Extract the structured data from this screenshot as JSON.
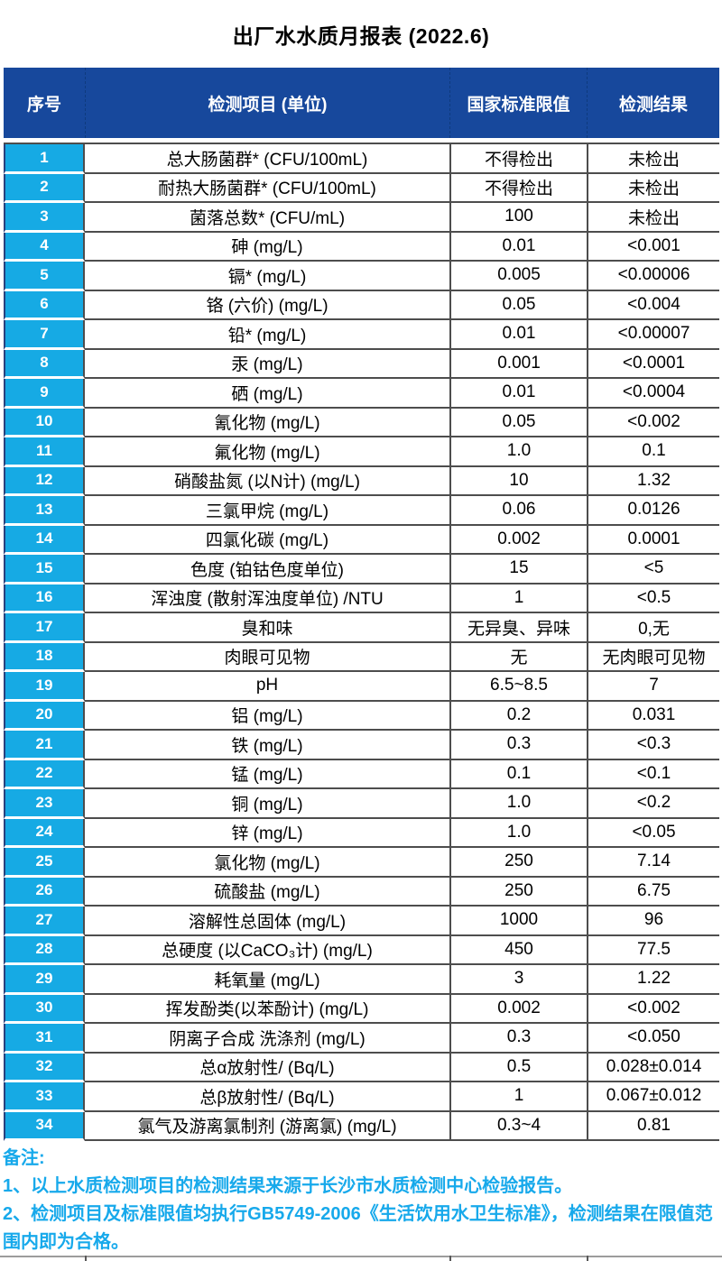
{
  "title": "出厂水水质月报表 (2022.6)",
  "table": {
    "headers": [
      "序号",
      "检测项目 (单位)",
      "国家标准限值",
      "检测结果"
    ],
    "rows": [
      {
        "no": "1",
        "item": "总大肠菌群* (CFU/100mL)",
        "limit": "不得检出",
        "result": "未检出"
      },
      {
        "no": "2",
        "item": "耐热大肠菌群* (CFU/100mL)",
        "limit": "不得检出",
        "result": "未检出"
      },
      {
        "no": "3",
        "item": "菌落总数* (CFU/mL)",
        "limit": "100",
        "result": "未检出"
      },
      {
        "no": "4",
        "item": "砷 (mg/L)",
        "limit": "0.01",
        "result": "<0.001"
      },
      {
        "no": "5",
        "item": "镉* (mg/L)",
        "limit": "0.005",
        "result": "<0.00006"
      },
      {
        "no": "6",
        "item": "铬 (六价)  (mg/L)",
        "limit": "0.05",
        "result": "<0.004"
      },
      {
        "no": "7",
        "item": "铅* (mg/L)",
        "limit": "0.01",
        "result": "<0.00007"
      },
      {
        "no": "8",
        "item": "汞 (mg/L)",
        "limit": "0.001",
        "result": "<0.0001"
      },
      {
        "no": "9",
        "item": "硒 (mg/L)",
        "limit": "0.01",
        "result": "<0.0004"
      },
      {
        "no": "10",
        "item": "氰化物 (mg/L)",
        "limit": "0.05",
        "result": "<0.002"
      },
      {
        "no": "11",
        "item": "氟化物 (mg/L)",
        "limit": "1.0",
        "result": "0.1"
      },
      {
        "no": "12",
        "item": "硝酸盐氮 (以N计)  (mg/L)",
        "limit": "10",
        "result": "1.32"
      },
      {
        "no": "13",
        "item": "三氯甲烷 (mg/L)",
        "limit": "0.06",
        "result": "0.0126"
      },
      {
        "no": "14",
        "item": "四氯化碳 (mg/L)",
        "limit": "0.002",
        "result": "0.0001"
      },
      {
        "no": "15",
        "item": "色度 (铂钴色度单位)",
        "limit": "15",
        "result": "<5"
      },
      {
        "no": "16",
        "item": "浑浊度 (散射浑浊度单位) /NTU",
        "limit": "1",
        "result": "<0.5"
      },
      {
        "no": "17",
        "item": "臭和味",
        "limit": "无异臭、异味",
        "result": "0,无"
      },
      {
        "no": "18",
        "item": "肉眼可见物",
        "limit": "无",
        "result": "无肉眼可见物"
      },
      {
        "no": "19",
        "item": "pH",
        "limit": "6.5~8.5",
        "result": "7"
      },
      {
        "no": "20",
        "item": "铝 (mg/L)",
        "limit": "0.2",
        "result": "0.031"
      },
      {
        "no": "21",
        "item": "铁 (mg/L)",
        "limit": "0.3",
        "result": "<0.3"
      },
      {
        "no": "22",
        "item": "锰 (mg/L)",
        "limit": "0.1",
        "result": "<0.1"
      },
      {
        "no": "23",
        "item": "铜 (mg/L)",
        "limit": "1.0",
        "result": "<0.2"
      },
      {
        "no": "24",
        "item": "锌 (mg/L)",
        "limit": "1.0",
        "result": "<0.05"
      },
      {
        "no": "25",
        "item": "氯化物 (mg/L)",
        "limit": "250",
        "result": "7.14"
      },
      {
        "no": "26",
        "item": "硫酸盐 (mg/L)",
        "limit": "250",
        "result": "6.75"
      },
      {
        "no": "27",
        "item": "溶解性总固体 (mg/L)",
        "limit": "1000",
        "result": "96"
      },
      {
        "no": "28",
        "item": "总硬度 (以CaCO₃计)  (mg/L)",
        "limit": "450",
        "result": "77.5"
      },
      {
        "no": "29",
        "item": "耗氧量 (mg/L)",
        "limit": "3",
        "result": "1.22"
      },
      {
        "no": "30",
        "item": "挥发酚类(以苯酚计) (mg/L)",
        "limit": "0.002",
        "result": "<0.002"
      },
      {
        "no": "31",
        "item": "阴离子合成 洗涤剂 (mg/L)",
        "limit": "0.3",
        "result": "<0.050"
      },
      {
        "no": "32",
        "item": "总α放射性/ (Bq/L)",
        "limit": "0.5",
        "result": "0.028±0.014"
      },
      {
        "no": "33",
        "item": "总β放射性/ (Bq/L)",
        "limit": "1",
        "result": "0.067±0.012"
      },
      {
        "no": "34",
        "item": "氯气及游离氯制剂 (游离氯)  (mg/L)",
        "limit": "0.3~4",
        "result": "0.81"
      }
    ]
  },
  "notes": {
    "label": "备注:",
    "items": [
      "1、以上水质检测项目的检测结果来源于长沙市水质检测中心检验报告。",
      "2、检测项目及标准限值均执行GB5749-2006《生活饮用水卫生标准》，检测结果在限值范围内即为合格。"
    ]
  },
  "colors": {
    "header_bg": "#17489c",
    "serial_bg": "#16aae4",
    "note_text": "#17a9eb",
    "grid_border": "#4d4d4d"
  }
}
